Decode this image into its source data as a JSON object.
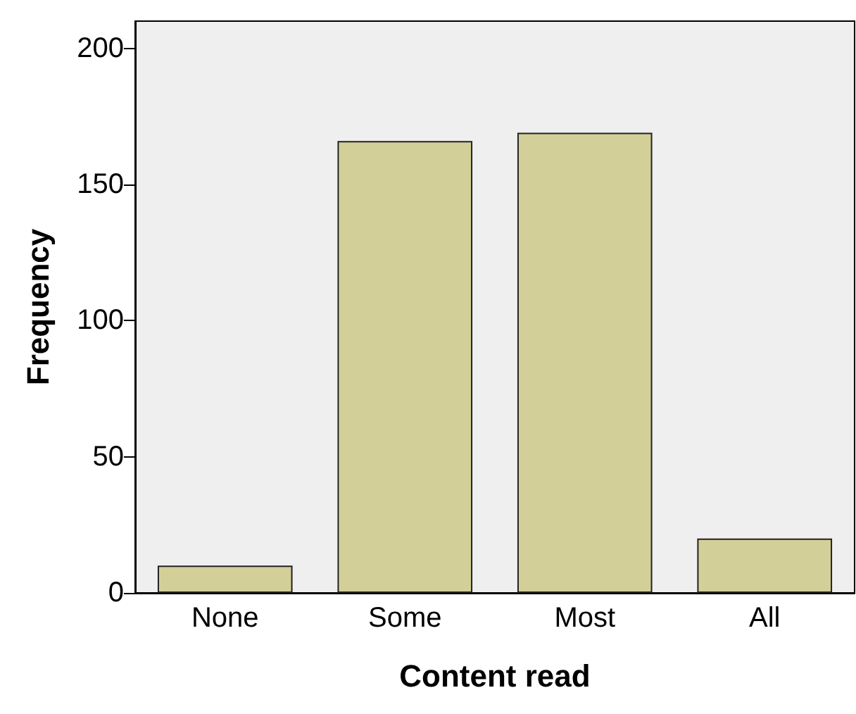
{
  "chart_data": {
    "type": "bar",
    "xlabel": "Content read",
    "ylabel": "Frequency",
    "categories": [
      "None",
      "Some",
      "Most",
      "All"
    ],
    "values": [
      10,
      166,
      169,
      20
    ],
    "color": "#d3cf98",
    "ylim": [
      0,
      210
    ],
    "yticks": [
      0,
      50,
      100,
      150,
      200
    ],
    "grid": false
  }
}
